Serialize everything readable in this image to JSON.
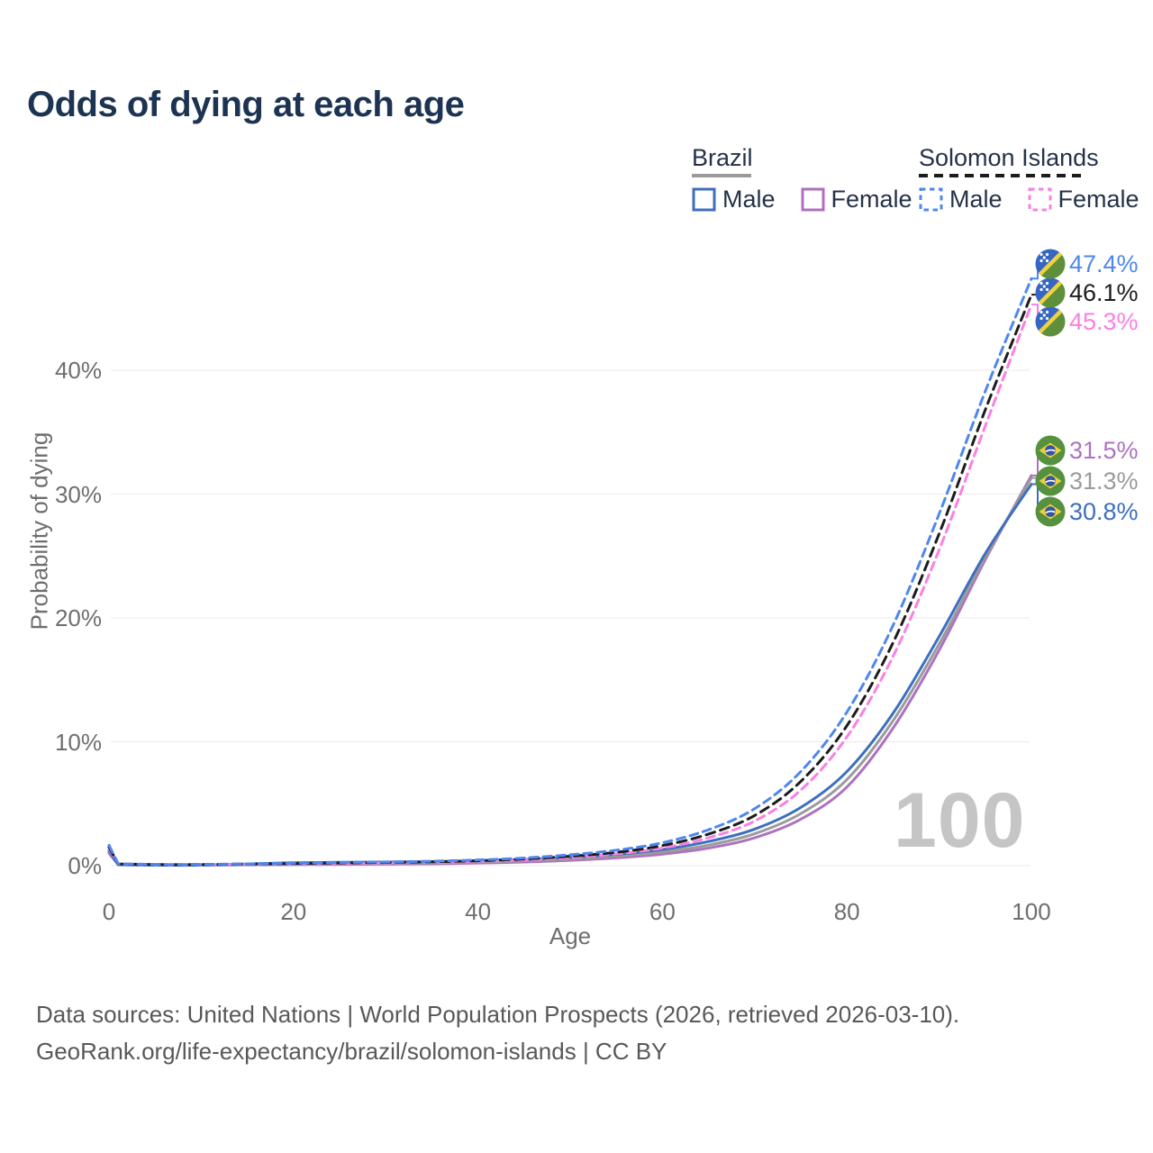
{
  "title": "Odds of dying at each age",
  "watermark_age": "100",
  "legend": {
    "groups": [
      {
        "label": "Brazil",
        "line_style": "solid",
        "underline_color": "#9a9a9a",
        "items": [
          {
            "label": "Male",
            "color": "#3e6fbe",
            "dashed": false
          },
          {
            "label": "Female",
            "color": "#b06fbe",
            "dashed": false
          }
        ]
      },
      {
        "label": "Solomon Islands",
        "line_style": "dashed",
        "underline_color": "#1c1c1c",
        "items": [
          {
            "label": "Male",
            "color": "#4e87ef",
            "dashed": true
          },
          {
            "label": "Female",
            "color": "#fa80e2",
            "dashed": true
          }
        ]
      }
    ]
  },
  "chart_data": {
    "type": "line",
    "title": "Odds of dying at each age",
    "xlabel": "Age",
    "ylabel": "Probability of dying",
    "x_ticks": [
      0,
      20,
      40,
      60,
      80,
      100
    ],
    "y_tick_labels": [
      "0%",
      "10%",
      "20%",
      "30%",
      "40%"
    ],
    "xlim": [
      0,
      100
    ],
    "ylim_pct": [
      0,
      48
    ],
    "grid": "horizontal",
    "legend_position": "top-right",
    "ages": [
      0,
      1,
      5,
      10,
      15,
      20,
      25,
      30,
      35,
      40,
      45,
      50,
      55,
      60,
      65,
      70,
      75,
      80,
      85,
      90,
      95,
      100
    ],
    "series": [
      {
        "id": "brazil-female",
        "country": "Brazil",
        "group_label": "Female",
        "color": "#ae72bf",
        "dashed": false,
        "flag": "br",
        "end_label": "31.5%",
        "values_pct": [
          1.0,
          0.07,
          0.035,
          0.035,
          0.06,
          0.08,
          0.1,
          0.12,
          0.15,
          0.21,
          0.29,
          0.43,
          0.63,
          0.93,
          1.42,
          2.25,
          3.75,
          6.35,
          11.1,
          17.4,
          24.7,
          31.5
        ]
      },
      {
        "id": "brazil-all",
        "country": "Brazil",
        "group_label": "",
        "color": "#9b9b9b",
        "dashed": false,
        "flag": "br",
        "end_label": "31.3%",
        "values_pct": [
          1.1,
          0.075,
          0.038,
          0.038,
          0.09,
          0.15,
          0.17,
          0.19,
          0.23,
          0.29,
          0.39,
          0.54,
          0.77,
          1.1,
          1.66,
          2.58,
          4.2,
          6.95,
          11.7,
          17.9,
          24.9,
          31.3
        ]
      },
      {
        "id": "brazil-male",
        "country": "Brazil",
        "group_label": "Male",
        "color": "#3e6fbe",
        "dashed": false,
        "flag": "br",
        "end_label": "30.8%",
        "values_pct": [
          1.2,
          0.08,
          0.04,
          0.04,
          0.14,
          0.24,
          0.27,
          0.29,
          0.33,
          0.39,
          0.5,
          0.67,
          0.92,
          1.3,
          1.95,
          2.95,
          4.7,
          7.6,
          12.3,
          18.5,
          25.2,
          30.8
        ]
      },
      {
        "id": "solomon-islands-female",
        "country": "Solomon Islands",
        "group_label": "Female",
        "color": "#fa80e2",
        "dashed": true,
        "flag": "si",
        "end_label": "45.3%",
        "values_pct": [
          1.35,
          0.12,
          0.08,
          0.08,
          0.11,
          0.14,
          0.18,
          0.22,
          0.27,
          0.35,
          0.47,
          0.66,
          0.95,
          1.42,
          2.25,
          3.6,
          6.1,
          10.4,
          16.9,
          25.5,
          35.5,
          45.3
        ]
      },
      {
        "id": "solomon-islands-all",
        "country": "Solomon Islands",
        "group_label": "",
        "color": "#1c1c1c",
        "dashed": true,
        "flag": "si",
        "end_label": "46.1%",
        "values_pct": [
          1.5,
          0.13,
          0.09,
          0.09,
          0.13,
          0.17,
          0.22,
          0.26,
          0.31,
          0.4,
          0.54,
          0.76,
          1.08,
          1.62,
          2.55,
          4.05,
          6.8,
          11.3,
          18.0,
          26.8,
          36.8,
          46.1
        ]
      },
      {
        "id": "solomon-islands-male",
        "country": "Solomon Islands",
        "group_label": "Male",
        "color": "#4e87ef",
        "dashed": true,
        "flag": "si",
        "end_label": "47.4%",
        "values_pct": [
          1.65,
          0.15,
          0.1,
          0.1,
          0.15,
          0.2,
          0.25,
          0.3,
          0.36,
          0.46,
          0.62,
          0.88,
          1.25,
          1.85,
          2.9,
          4.6,
          7.6,
          12.4,
          19.4,
          28.4,
          38.3,
          47.4
        ]
      }
    ]
  },
  "footer": {
    "line1": "Data sources: United Nations | World Population Prospects (2026, retrieved 2026-03-10).",
    "line2": "GeoRank.org/life-expectancy/brazil/solomon-islands | CC BY"
  }
}
